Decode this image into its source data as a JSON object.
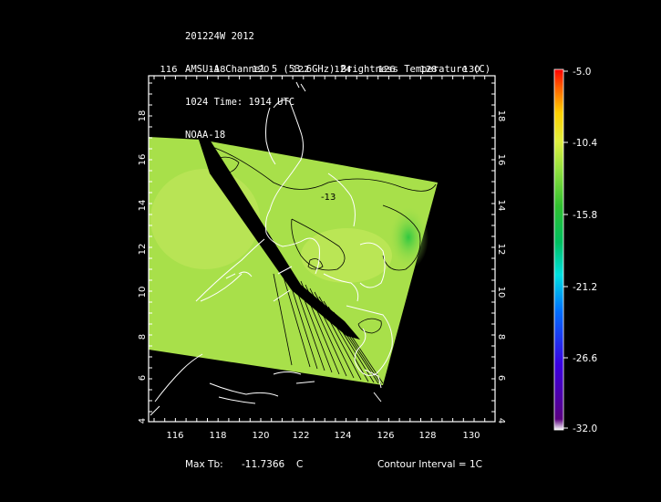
{
  "header": {
    "line1": "201224W 2012",
    "line2": "AMSU-A Channel 5 (53.6GHz) Brightness Temperature (C)",
    "line3": "1024 Time: 1914 UTC",
    "line4": "NOAA-18"
  },
  "axes": {
    "lon_ticks": [
      "116",
      "118",
      "120",
      "122",
      "124",
      "126",
      "128",
      "130"
    ],
    "lat_ticks": [
      "18",
      "16",
      "14",
      "12",
      "10",
      "8",
      "6",
      "4"
    ]
  },
  "colorbar": {
    "labels": [
      "-5.0",
      "-10.4",
      "-15.8",
      "-21.2",
      "-26.6",
      "-32.0"
    ],
    "min": -32.0,
    "max": -5.0
  },
  "footer": {
    "max_tb_label": "Max Tb:",
    "max_tb_value": "-11.7366",
    "max_tb_unit": "C",
    "contour_interval": "Contour Interval = 1C"
  },
  "contour_label": "-13",
  "colors": {
    "background": "#000000",
    "swath": "#a8e04a",
    "swath_light": "#c2e85a",
    "coast": "#ffffff",
    "contour": "#000000"
  }
}
